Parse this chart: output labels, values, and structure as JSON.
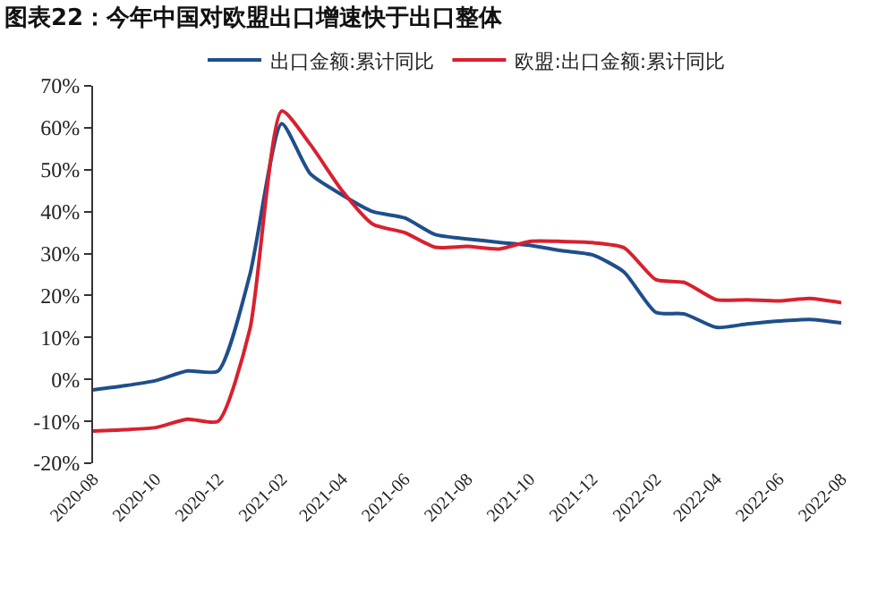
{
  "chart_data": {
    "type": "line",
    "title": "图表22：今年中国对欧盟出口增速快于出口整体",
    "x": [
      "2020-08",
      "2020-09",
      "2020-10",
      "2020-11",
      "2020-12",
      "2021-01",
      "2021-02",
      "2021-03",
      "2021-04",
      "2021-05",
      "2021-06",
      "2021-07",
      "2021-08",
      "2021-09",
      "2021-10",
      "2021-11",
      "2021-12",
      "2022-01",
      "2022-02",
      "2022-03",
      "2022-04",
      "2022-05",
      "2022-06",
      "2022-07",
      "2022-08"
    ],
    "series": [
      {
        "name": "出口金额:累计同比",
        "color": "#1f4e8c",
        "values": [
          -2.5,
          -1.5,
          -0.3,
          2,
          2,
          25,
          61,
          49,
          44,
          40,
          38.5,
          34.5,
          33.5,
          32.7,
          32,
          30.7,
          29.7,
          25.6,
          16,
          15.6,
          12.4,
          13.2,
          13.9,
          14.3,
          13.5
        ]
      },
      {
        "name": "欧盟:出口金额:累计同比",
        "color": "#d9202f",
        "values": [
          -12.3,
          -12,
          -11.5,
          -9.5,
          -10,
          12,
          64,
          56,
          45,
          37,
          35,
          31.5,
          31.7,
          31.1,
          32.9,
          32.9,
          32.6,
          31.4,
          23.8,
          23.1,
          19,
          19,
          18.7,
          19.3,
          18.3
        ]
      }
    ],
    "ylim": [
      -20,
      70
    ],
    "yticks": [
      {
        "value": -20,
        "label": "-20%"
      },
      {
        "value": -10,
        "label": "-10%"
      },
      {
        "value": 0,
        "label": "0%"
      },
      {
        "value": 10,
        "label": "10%"
      },
      {
        "value": 20,
        "label": "20%"
      },
      {
        "value": 30,
        "label": "30%"
      },
      {
        "value": 40,
        "label": "40%"
      },
      {
        "value": 50,
        "label": "50%"
      },
      {
        "value": 60,
        "label": "60%"
      },
      {
        "value": 70,
        "label": "70%"
      }
    ],
    "xticks": [
      {
        "value": "2020-08",
        "label": "2020-08"
      },
      {
        "value": "2020-10",
        "label": "2020-10"
      },
      {
        "value": "2020-12",
        "label": "2020-12"
      },
      {
        "value": "2021-02",
        "label": "2021-02"
      },
      {
        "value": "2021-04",
        "label": "2021-04"
      },
      {
        "value": "2021-06",
        "label": "2021-06"
      },
      {
        "value": "2021-08",
        "label": "2021-08"
      },
      {
        "value": "2021-10",
        "label": "2021-10"
      },
      {
        "value": "2021-12",
        "label": "2021-12"
      },
      {
        "value": "2022-02",
        "label": "2022-02"
      },
      {
        "value": "2022-04",
        "label": "2022-04"
      },
      {
        "value": "2022-06",
        "label": "2022-06"
      },
      {
        "value": "2022-08",
        "label": "2022-08"
      }
    ],
    "xlim": [
      "2020-08",
      "2022-08"
    ],
    "grid": false,
    "legend": "top",
    "marker": "none",
    "line_style": "solid"
  }
}
